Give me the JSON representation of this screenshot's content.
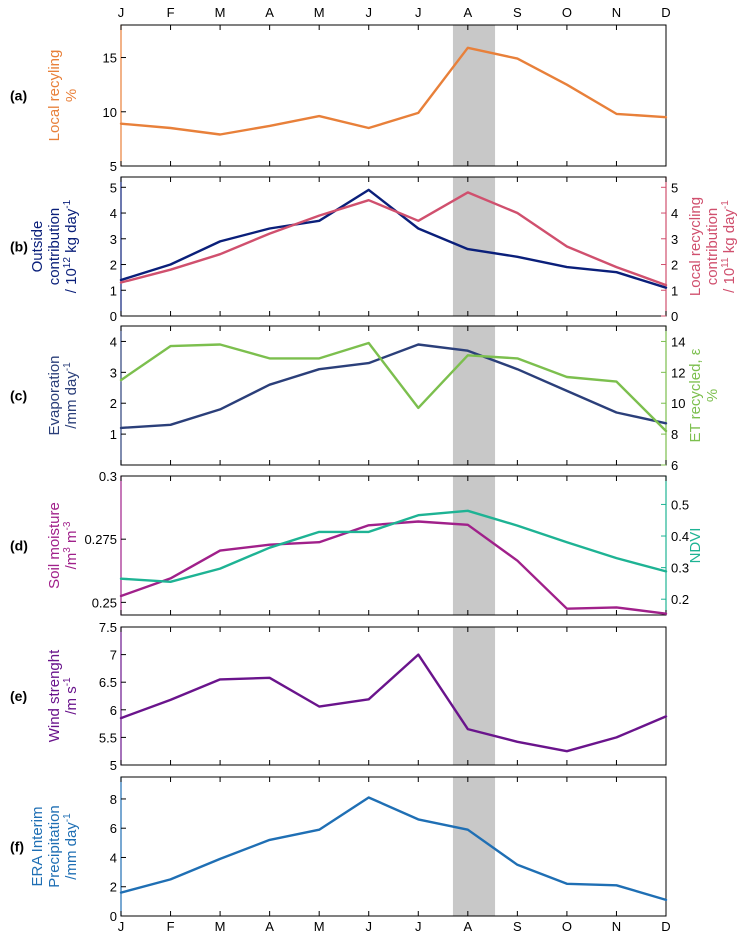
{
  "chart_data": [
    {
      "type": "line",
      "panel_label": "(a)",
      "x": [
        "J",
        "F",
        "M",
        "A",
        "M",
        "J",
        "J",
        "A",
        "S",
        "O",
        "N",
        "D"
      ],
      "top_tick_labels": true,
      "ylabel_left": [
        "Local recyling",
        "%"
      ],
      "ylabel_left_color": "#e8803a",
      "ylim_left": [
        5,
        18
      ],
      "yticks_left": [
        5,
        10,
        15
      ],
      "series": [
        {
          "axis": "left",
          "color": "#e8803a",
          "values": [
            8.9,
            8.5,
            7.9,
            8.7,
            9.6,
            8.5,
            9.9,
            15.9,
            14.9,
            12.5,
            9.8,
            9.5
          ]
        }
      ]
    },
    {
      "type": "line",
      "panel_label": "(b)",
      "x": [
        "J",
        "F",
        "M",
        "A",
        "M",
        "J",
        "J",
        "A",
        "S",
        "O",
        "N",
        "D"
      ],
      "ylabel_left": [
        "Outside",
        "contribution",
        "/ 10^12 kg day^-1"
      ],
      "ylabel_left_color": "#0a1f7a",
      "ylim_left": [
        0,
        5.4
      ],
      "yticks_left": [
        0,
        1,
        2,
        3,
        4,
        5
      ],
      "ylabel_right": [
        "Local recycling",
        "contribution",
        "/ 10^11 kg day^-1"
      ],
      "ylabel_right_color": "#d0506e",
      "ylim_right": [
        0,
        5.4
      ],
      "yticks_right": [
        0,
        1,
        2,
        3,
        4,
        5
      ],
      "series": [
        {
          "axis": "left",
          "color": "#0a1f7a",
          "values": [
            1.4,
            2.0,
            2.9,
            3.4,
            3.7,
            4.9,
            3.4,
            2.6,
            2.3,
            1.9,
            1.7,
            1.1
          ]
        },
        {
          "axis": "right",
          "color": "#d0506e",
          "values": [
            1.3,
            1.8,
            2.4,
            3.2,
            3.9,
            4.5,
            3.7,
            4.8,
            4.0,
            2.7,
            1.9,
            1.2
          ]
        }
      ]
    },
    {
      "type": "line",
      "panel_label": "(c)",
      "x": [
        "J",
        "F",
        "M",
        "A",
        "M",
        "J",
        "J",
        "A",
        "S",
        "O",
        "N",
        "D"
      ],
      "ylabel_left": [
        "Evaporation",
        "/mm day^-1"
      ],
      "ylabel_left_color": "#2b3f7a",
      "ylim_left": [
        0,
        4.5
      ],
      "yticks_left": [
        1,
        2,
        3,
        4
      ],
      "ylabel_right": [
        "ET recycled, ε",
        "%"
      ],
      "ylabel_right_color": "#7cbf4e",
      "ylim_right": [
        6,
        15
      ],
      "yticks_right": [
        6,
        8,
        10,
        12,
        14
      ],
      "series": [
        {
          "axis": "left",
          "color": "#2b3f7a",
          "values": [
            1.2,
            1.3,
            1.8,
            2.6,
            3.1,
            3.3,
            3.9,
            3.7,
            3.1,
            2.4,
            1.7,
            1.35
          ]
        },
        {
          "axis": "right",
          "color": "#7cbf4e",
          "values": [
            11.5,
            13.7,
            13.8,
            12.9,
            12.9,
            13.9,
            9.7,
            13.1,
            12.9,
            11.7,
            11.4,
            8.2
          ]
        }
      ]
    },
    {
      "type": "line",
      "panel_label": "(d)",
      "x": [
        "J",
        "F",
        "M",
        "A",
        "M",
        "J",
        "J",
        "A",
        "S",
        "O",
        "N",
        "D"
      ],
      "ylabel_left": [
        "Soil moisture",
        "/m^3 m^-3"
      ],
      "ylabel_left_color": "#a0208a",
      "ylim_left": [
        0.245,
        0.3
      ],
      "yticks_left": [
        0.25,
        0.275,
        0.3
      ],
      "ytick_labels_left": [
        "0.25",
        "0.275",
        "0.3"
      ],
      "ylabel_right": [
        "NDVI"
      ],
      "ylabel_right_color": "#1eb394",
      "ylim_right": [
        0.15,
        0.59
      ],
      "yticks_right": [
        0.2,
        0.3,
        0.4,
        0.5
      ],
      "series": [
        {
          "axis": "left",
          "color": "#a0208a",
          "values": [
            0.2525,
            0.2595,
            0.2705,
            0.2728,
            0.2738,
            0.2805,
            0.282,
            0.2807,
            0.2665,
            0.2475,
            0.248,
            0.2455
          ]
        },
        {
          "axis": "right",
          "color": "#1eb394",
          "values": [
            0.265,
            0.255,
            0.297,
            0.363,
            0.413,
            0.413,
            0.466,
            0.48,
            0.433,
            0.38,
            0.33,
            0.288
          ]
        }
      ]
    },
    {
      "type": "line",
      "panel_label": "(e)",
      "x": [
        "J",
        "F",
        "M",
        "A",
        "M",
        "J",
        "J",
        "A",
        "S",
        "O",
        "N",
        "D"
      ],
      "ylabel_left": [
        "Wind strenght",
        "/m s^-1"
      ],
      "ylabel_left_color": "#6a148c",
      "ylim_left": [
        5,
        7.5
      ],
      "yticks_left": [
        5,
        5.5,
        6,
        6.5,
        7,
        7.5
      ],
      "series": [
        {
          "axis": "left",
          "color": "#6a148c",
          "values": [
            5.85,
            6.18,
            6.55,
            6.58,
            6.06,
            6.19,
            7.0,
            5.65,
            5.42,
            5.25,
            5.5,
            5.88
          ]
        }
      ]
    },
    {
      "type": "line",
      "panel_label": "(f)",
      "x": [
        "J",
        "F",
        "M",
        "A",
        "M",
        "J",
        "J",
        "A",
        "S",
        "O",
        "N",
        "D"
      ],
      "bottom_tick_labels": true,
      "ylabel_left": [
        "ERA Interim",
        "Precipitation",
        "/mm day^-1"
      ],
      "ylabel_left_color": "#1f6fb4",
      "ylim_left": [
        0,
        9.5
      ],
      "yticks_left": [
        0,
        2,
        4,
        6,
        8
      ],
      "series": [
        {
          "axis": "left",
          "color": "#1f6fb4",
          "values": [
            1.6,
            2.5,
            3.9,
            5.2,
            5.9,
            8.1,
            6.6,
            5.9,
            3.5,
            2.2,
            2.1,
            1.1
          ]
        }
      ]
    }
  ],
  "shading": {
    "x_start": 6.7,
    "x_end": 7.55,
    "color": "#c8c8c8"
  }
}
